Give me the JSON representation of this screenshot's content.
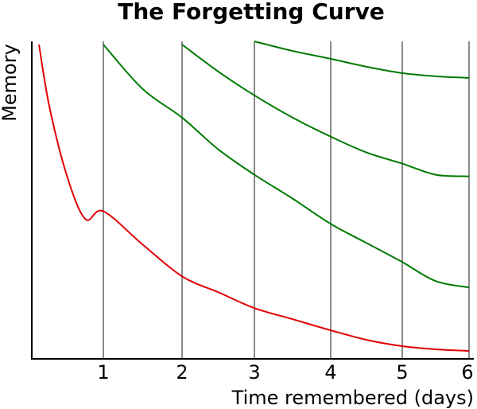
{
  "chart_data": {
    "type": "line",
    "title": "The Forgetting Curve",
    "xlabel": "Time remembered (days)",
    "ylabel": "Memory",
    "xlim": [
      0,
      6
    ],
    "ylim": [
      0,
      100
    ],
    "xticks": [
      "1",
      "2",
      "3",
      "4",
      "5",
      "6"
    ],
    "yticks": [],
    "grid": "vertical",
    "colors": {
      "initial": "#e00000",
      "review": "#007a00",
      "grid": "#8a8a8a",
      "axis": "#000000"
    },
    "series": [
      {
        "color": "#e00000",
        "x": [
          0.1,
          0.25,
          0.5,
          0.75,
          1,
          1.5,
          2,
          2.5,
          3,
          3.5,
          4,
          4.5,
          5,
          5.5,
          6
        ],
        "y": [
          99,
          79,
          57,
          44,
          46.5,
          36,
          26,
          21,
          16,
          12.5,
          9,
          6,
          4,
          3,
          2.5
        ]
      },
      {
        "color": "#007a00",
        "x": [
          1,
          1.5,
          2,
          2.5,
          3,
          3.5,
          4,
          4.5,
          5,
          5.5,
          6
        ],
        "y": [
          99,
          85,
          76,
          66,
          58,
          50.5,
          42.5,
          36.5,
          30.5,
          24.5,
          22.5
        ]
      },
      {
        "color": "#007a00",
        "x": [
          2,
          2.5,
          3,
          3.5,
          4,
          4.5,
          5,
          5.5,
          6
        ],
        "y": [
          99,
          90.5,
          83,
          76,
          70,
          65,
          61.5,
          58,
          57.5
        ]
      },
      {
        "color": "#007a00",
        "x": [
          3,
          3.5,
          4,
          4.5,
          5,
          5.5,
          6
        ],
        "y": [
          100,
          97,
          94.5,
          92,
          90,
          89,
          88.5
        ]
      }
    ]
  }
}
